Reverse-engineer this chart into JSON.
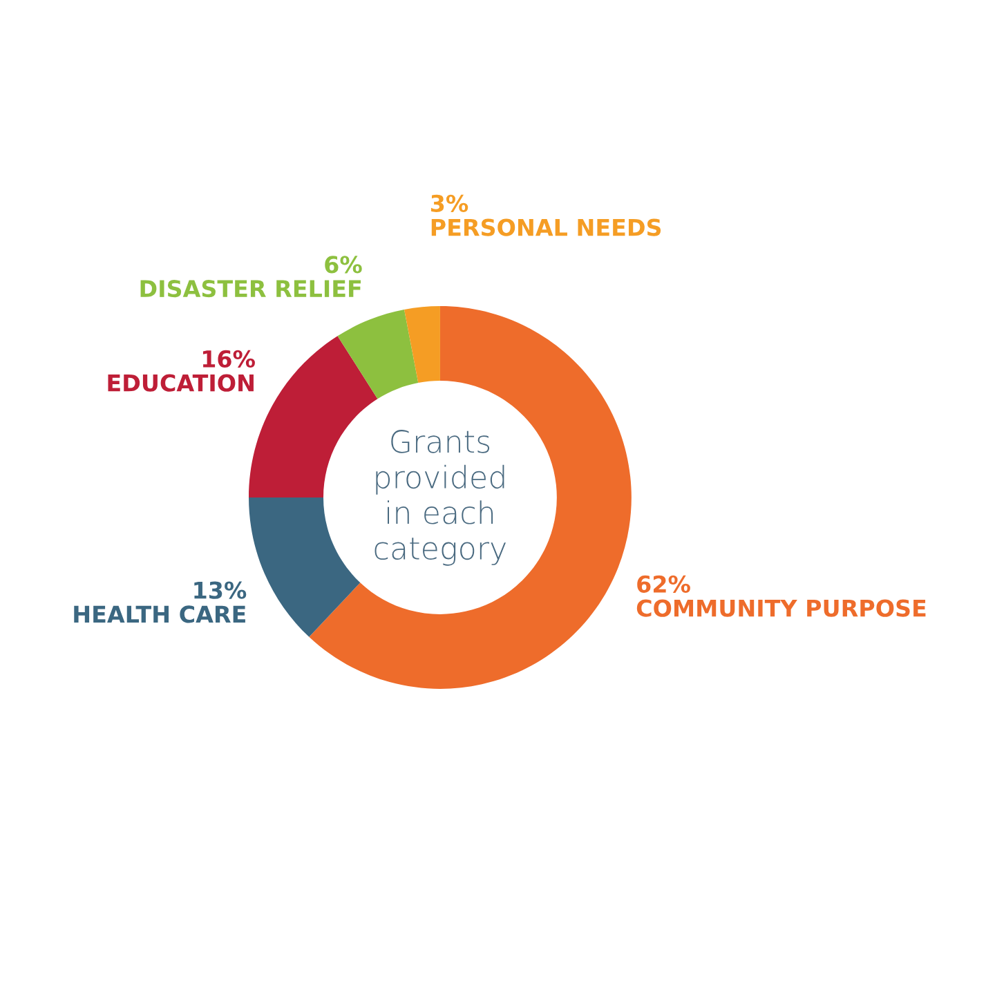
{
  "chart_data": {
    "type": "donut",
    "title": "Grants\nprovided\nin each\ncategory",
    "categories": [
      "COMMUNITY PURPOSE",
      "HEALTH CARE",
      "EDUCATION",
      "DISASTER RELIEF",
      "PERSONAL NEEDS"
    ],
    "values": [
      62,
      13,
      16,
      6,
      3
    ],
    "value_labels": [
      "62%",
      "13%",
      "16%",
      "6%",
      "3%"
    ],
    "colors": [
      "#ee6c2b",
      "#3b6781",
      "#be1e37",
      "#8dc03f",
      "#f59d24"
    ],
    "legend": false
  }
}
